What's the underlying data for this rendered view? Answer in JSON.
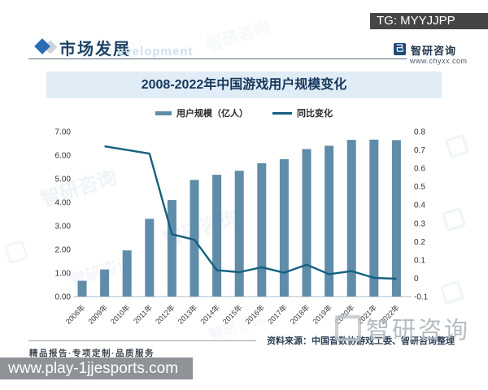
{
  "overlay": {
    "tg_label": "TG: MYYJJPP",
    "url_label": "www.play-1jjesports.com"
  },
  "header": {
    "section_title": "市场发展",
    "faint_text": "evelopment",
    "brand_name": "智研咨询",
    "brand_site": "www.chyxx.com",
    "logo_glyph": "己"
  },
  "watermark": {
    "brand_text": "智研咨询"
  },
  "chart_data": {
    "type": "bar+line",
    "title": "2008-2022年中国游戏用户规模变化",
    "categories": [
      "2008年",
      "2009年",
      "2010年",
      "2011年",
      "2012年",
      "2013年",
      "2014年",
      "2015年",
      "2016年",
      "2017年",
      "2018年",
      "2019年",
      "2020年",
      "2021年",
      "2022年"
    ],
    "series": [
      {
        "name": "用户规模（亿人）",
        "type": "bar",
        "axis": "left",
        "color": "#5f8ca9",
        "values": [
          0.67,
          1.15,
          1.96,
          3.3,
          4.1,
          4.95,
          5.17,
          5.34,
          5.66,
          5.83,
          6.26,
          6.4,
          6.65,
          6.66,
          6.64
        ]
      },
      {
        "name": "同比变化",
        "type": "line",
        "axis": "right",
        "color": "#15607f",
        "values": [
          null,
          0.72,
          0.7,
          0.68,
          0.24,
          0.21,
          0.044,
          0.033,
          0.06,
          0.03,
          0.074,
          0.022,
          0.039,
          0.002,
          -0.003
        ]
      }
    ],
    "left_axis": {
      "min": 0,
      "max": 7,
      "step": 1,
      "tick_labels": [
        "0.00",
        "1.00",
        "2.00",
        "3.00",
        "4.00",
        "5.00",
        "6.00",
        "7.00"
      ]
    },
    "right_axis": {
      "min": -0.1,
      "max": 0.8,
      "step": 0.1,
      "tick_labels": [
        "-0.1",
        "0",
        "0.1",
        "0.2",
        "0.3",
        "0.4",
        "0.5",
        "0.6",
        "0.7",
        "0.8"
      ]
    },
    "grid": false,
    "legend_position": "top"
  },
  "footer": {
    "source": "资料来源：中国音数协游戏工委、智研咨询整理",
    "services": "精品报告·专项定制·品质服务"
  }
}
